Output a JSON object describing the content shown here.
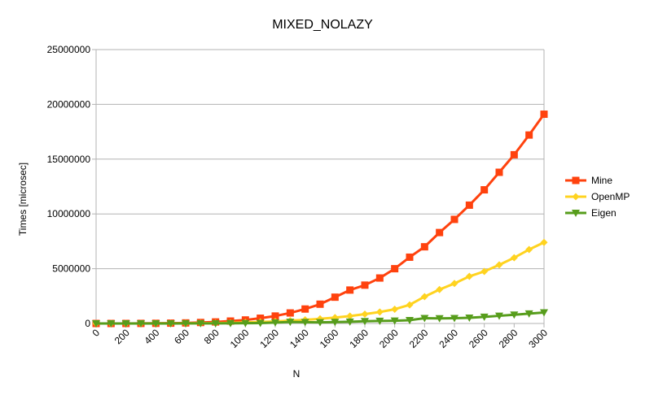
{
  "chart_data": {
    "type": "line",
    "title": "MIXED_NOLAZY",
    "xlabel": "N",
    "ylabel": "Times [microsec]",
    "xlim": [
      0,
      3000
    ],
    "ylim": [
      0,
      25000000
    ],
    "x_ticks": [
      0,
      200,
      400,
      600,
      800,
      1000,
      1200,
      1400,
      1600,
      1800,
      2000,
      2200,
      2400,
      2600,
      2800,
      3000
    ],
    "y_ticks": [
      0,
      5000000,
      10000000,
      15000000,
      20000000,
      25000000
    ],
    "grid": true,
    "legend_position": "right",
    "x": [
      0,
      100,
      200,
      300,
      400,
      500,
      600,
      700,
      800,
      900,
      1000,
      1100,
      1200,
      1300,
      1400,
      1500,
      1600,
      1700,
      1800,
      1900,
      2000,
      2100,
      2200,
      2300,
      2400,
      2500,
      2600,
      2700,
      2800,
      2900,
      3000
    ],
    "series": [
      {
        "name": "Mine",
        "color": "#ff420e",
        "marker": "square",
        "values": [
          0,
          1000,
          3000,
          8000,
          15000,
          30000,
          50000,
          90000,
          140000,
          220000,
          320000,
          480000,
          680000,
          960000,
          1320000,
          1760000,
          2400000,
          3050000,
          3500000,
          4150000,
          5000000,
          6050000,
          7000000,
          8300000,
          9500000,
          10800000,
          12200000,
          13800000,
          15400000,
          17200000,
          19100000
        ]
      },
      {
        "name": "OpenMP",
        "color": "#ffd320",
        "marker": "diamond",
        "values": [
          0,
          500,
          1000,
          3000,
          6000,
          10000,
          15000,
          25000,
          40000,
          60000,
          100000,
          140000,
          190000,
          260000,
          330000,
          430000,
          540000,
          680000,
          850000,
          1050000,
          1300000,
          1700000,
          2450000,
          3100000,
          3650000,
          4300000,
          4750000,
          5350000,
          6000000,
          6750000,
          7400000
        ]
      },
      {
        "name": "Eigen",
        "color": "#579d1c",
        "marker": "triangle-down",
        "values": [
          0,
          200,
          500,
          1000,
          2000,
          3000,
          5000,
          8000,
          12000,
          18000,
          25000,
          40000,
          80000,
          140000,
          120000,
          100000,
          130000,
          160000,
          200000,
          230000,
          250000,
          300000,
          480000,
          460000,
          480000,
          520000,
          600000,
          700000,
          800000,
          900000,
          1000000
        ]
      }
    ]
  }
}
